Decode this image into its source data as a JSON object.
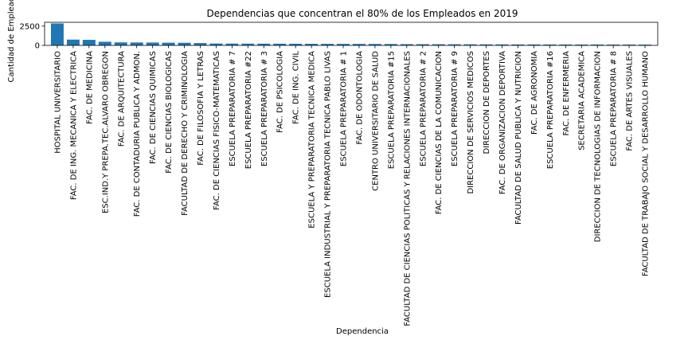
{
  "chart_data": {
    "type": "bar",
    "title": "Dependencias que concentran el 80% de los Empleados en 2019",
    "xlabel": "Dependencia",
    "ylabel": "Cantidad de Empleados",
    "ylim": [
      0,
      3000
    ],
    "yticks": [
      0,
      2500
    ],
    "grid": false,
    "bar_color": "#1f77b4",
    "categories": [
      "HOSPITAL UNIVERSITARIO",
      "FAC. DE ING. MECANICA Y ELECTRICA",
      "FAC. DE MEDICINA",
      "ESC.IND.Y PREPA.TEC.ALVARO OBREGON",
      "FAC. DE ARQUITECTURA",
      "FAC. DE CONTADURIA PUBLICA Y ADMON.",
      "FAC. DE CIENCIAS QUIMICAS",
      "FAC. DE CIENCIAS BIOLOGICAS",
      "FACULTAD DE DERECHO Y CRIMINOLOGIA",
      "FAC. DE FILOSOFIA Y LETRAS",
      "FAC. DE CIENCIAS FISICO-MATEMATICAS",
      "ESCUELA PREPARATORIA # 7",
      "ESCUELA PREPARATORIA #22",
      "ESCUELA PREPARATORIA # 3",
      "FAC. DE PSICOLOGIA",
      "FAC. DE ING. CIVIL",
      "ESCUELA Y PREPARATORIA TECNICA MEDICA",
      "ESCUELA INDUSTRIAL Y PREPARATORIA TECNICA PABLO LIVAS",
      "ESCUELA PREPARATORIA # 1",
      "FAC. DE ODONTOLOGIA",
      "CENTRO UNIVERSITARIO DE SALUD",
      "ESCUELA PREPARATORIA #15",
      "FACULTAD DE CIENCIAS POLITICAS Y RELACIONES INTERNACIONALES",
      "ESCUELA PREPARATORIA # 2",
      "FAC. DE CIENCIAS DE LA COMUNICACION",
      "ESCUELA PREPARATORIA # 9",
      "DIRECCION DE SERVICIOS MEDICOS",
      "DIRECCION DE DEPORTES",
      "FAC. DE ORGANIZACION DEPORTIVA",
      "FACULTAD DE SALUD PUBLICA Y NUTRICION",
      "FAC. DE AGRONOMIA",
      "ESCUELA PREPARATORIA #16",
      "FAC. DE ENFERMERIA",
      "SECRETARIA ACADEMICA",
      "DIRECCION DE TECNOLOGIAS DE INFORMACION",
      "ESCUELA PREPARATORIA # 8",
      "FAC. DE ARTES VISUALES",
      "FACULTAD DE TRABAJO SOCIAL Y DESARROLLO HUMANO"
    ],
    "values": [
      2850,
      750,
      720,
      470,
      390,
      380,
      370,
      350,
      340,
      300,
      240,
      230,
      225,
      220,
      215,
      210,
      205,
      200,
      195,
      190,
      185,
      180,
      160,
      155,
      150,
      145,
      140,
      135,
      130,
      125,
      125,
      120,
      120,
      115,
      115,
      110,
      110,
      105
    ]
  }
}
